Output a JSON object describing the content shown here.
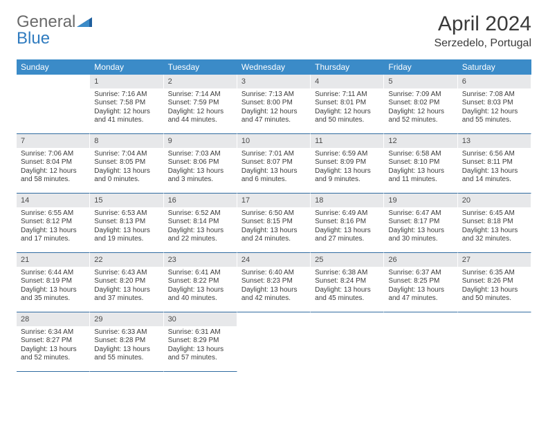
{
  "brand": {
    "part1": "General",
    "part2": "Blue"
  },
  "title": "April 2024",
  "location": "Serzedelo, Portugal",
  "colors": {
    "header_bg": "#3b8bc8",
    "header_fg": "#ffffff",
    "daynum_bg": "#e7e8ea",
    "border": "#2f6aa0",
    "text": "#3a3a3a",
    "logo_gray": "#6a6a6a",
    "logo_blue": "#2f7bbf"
  },
  "weekdays": [
    "Sunday",
    "Monday",
    "Tuesday",
    "Wednesday",
    "Thursday",
    "Friday",
    "Saturday"
  ],
  "days": [
    {
      "n": "1",
      "sr": "7:16 AM",
      "ss": "7:58 PM",
      "dl": "12 hours and 41 minutes."
    },
    {
      "n": "2",
      "sr": "7:14 AM",
      "ss": "7:59 PM",
      "dl": "12 hours and 44 minutes."
    },
    {
      "n": "3",
      "sr": "7:13 AM",
      "ss": "8:00 PM",
      "dl": "12 hours and 47 minutes."
    },
    {
      "n": "4",
      "sr": "7:11 AM",
      "ss": "8:01 PM",
      "dl": "12 hours and 50 minutes."
    },
    {
      "n": "5",
      "sr": "7:09 AM",
      "ss": "8:02 PM",
      "dl": "12 hours and 52 minutes."
    },
    {
      "n": "6",
      "sr": "7:08 AM",
      "ss": "8:03 PM",
      "dl": "12 hours and 55 minutes."
    },
    {
      "n": "7",
      "sr": "7:06 AM",
      "ss": "8:04 PM",
      "dl": "12 hours and 58 minutes."
    },
    {
      "n": "8",
      "sr": "7:04 AM",
      "ss": "8:05 PM",
      "dl": "13 hours and 0 minutes."
    },
    {
      "n": "9",
      "sr": "7:03 AM",
      "ss": "8:06 PM",
      "dl": "13 hours and 3 minutes."
    },
    {
      "n": "10",
      "sr": "7:01 AM",
      "ss": "8:07 PM",
      "dl": "13 hours and 6 minutes."
    },
    {
      "n": "11",
      "sr": "6:59 AM",
      "ss": "8:09 PM",
      "dl": "13 hours and 9 minutes."
    },
    {
      "n": "12",
      "sr": "6:58 AM",
      "ss": "8:10 PM",
      "dl": "13 hours and 11 minutes."
    },
    {
      "n": "13",
      "sr": "6:56 AM",
      "ss": "8:11 PM",
      "dl": "13 hours and 14 minutes."
    },
    {
      "n": "14",
      "sr": "6:55 AM",
      "ss": "8:12 PM",
      "dl": "13 hours and 17 minutes."
    },
    {
      "n": "15",
      "sr": "6:53 AM",
      "ss": "8:13 PM",
      "dl": "13 hours and 19 minutes."
    },
    {
      "n": "16",
      "sr": "6:52 AM",
      "ss": "8:14 PM",
      "dl": "13 hours and 22 minutes."
    },
    {
      "n": "17",
      "sr": "6:50 AM",
      "ss": "8:15 PM",
      "dl": "13 hours and 24 minutes."
    },
    {
      "n": "18",
      "sr": "6:49 AM",
      "ss": "8:16 PM",
      "dl": "13 hours and 27 minutes."
    },
    {
      "n": "19",
      "sr": "6:47 AM",
      "ss": "8:17 PM",
      "dl": "13 hours and 30 minutes."
    },
    {
      "n": "20",
      "sr": "6:45 AM",
      "ss": "8:18 PM",
      "dl": "13 hours and 32 minutes."
    },
    {
      "n": "21",
      "sr": "6:44 AM",
      "ss": "8:19 PM",
      "dl": "13 hours and 35 minutes."
    },
    {
      "n": "22",
      "sr": "6:43 AM",
      "ss": "8:20 PM",
      "dl": "13 hours and 37 minutes."
    },
    {
      "n": "23",
      "sr": "6:41 AM",
      "ss": "8:22 PM",
      "dl": "13 hours and 40 minutes."
    },
    {
      "n": "24",
      "sr": "6:40 AM",
      "ss": "8:23 PM",
      "dl": "13 hours and 42 minutes."
    },
    {
      "n": "25",
      "sr": "6:38 AM",
      "ss": "8:24 PM",
      "dl": "13 hours and 45 minutes."
    },
    {
      "n": "26",
      "sr": "6:37 AM",
      "ss": "8:25 PM",
      "dl": "13 hours and 47 minutes."
    },
    {
      "n": "27",
      "sr": "6:35 AM",
      "ss": "8:26 PM",
      "dl": "13 hours and 50 minutes."
    },
    {
      "n": "28",
      "sr": "6:34 AM",
      "ss": "8:27 PM",
      "dl": "13 hours and 52 minutes."
    },
    {
      "n": "29",
      "sr": "6:33 AM",
      "ss": "8:28 PM",
      "dl": "13 hours and 55 minutes."
    },
    {
      "n": "30",
      "sr": "6:31 AM",
      "ss": "8:29 PM",
      "dl": "13 hours and 57 minutes."
    }
  ],
  "labels": {
    "sunrise": "Sunrise:",
    "sunset": "Sunset:",
    "daylight": "Daylight:"
  },
  "leading_blanks": 1,
  "trailing_blanks": 4
}
